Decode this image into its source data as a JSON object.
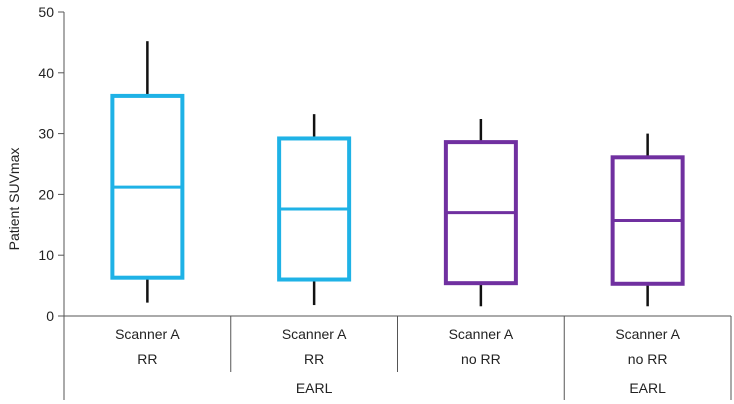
{
  "chart_data": {
    "type": "box",
    "title": "",
    "ylabel": "Patient SUVmax",
    "ylim": [
      0,
      50
    ],
    "yticks": [
      0,
      10,
      20,
      30,
      40,
      50
    ],
    "grid": false,
    "legend": "none",
    "category_rows": [
      [
        "Scanner A",
        "Scanner A",
        "Scanner A",
        "Scanner A"
      ],
      [
        "RR",
        "RR",
        "no RR",
        "no RR"
      ]
    ],
    "group_labels": [
      {
        "label": "EARL",
        "spans": [
          1,
          2
        ]
      },
      {
        "label": "EARL",
        "spans": [
          3,
          3
        ]
      }
    ],
    "series": [
      {
        "min": 2.2,
        "q1": 6.3,
        "median": 21.2,
        "q3": 36.2,
        "max": 45.2,
        "color": "#1fb2e6"
      },
      {
        "min": 1.8,
        "q1": 6.0,
        "median": 17.6,
        "q3": 29.2,
        "max": 33.2,
        "color": "#1fb2e6"
      },
      {
        "min": 1.6,
        "q1": 5.4,
        "median": 17.0,
        "q3": 28.6,
        "max": 32.4,
        "color": "#7030a0"
      },
      {
        "min": 1.6,
        "q1": 5.3,
        "median": 15.7,
        "q3": 26.1,
        "max": 30.0,
        "color": "#7030a0"
      }
    ],
    "colors": {
      "rr": "#1fb2e6",
      "no_rr": "#7030a0",
      "axis": "#555555",
      "whisker": "#111111"
    }
  }
}
